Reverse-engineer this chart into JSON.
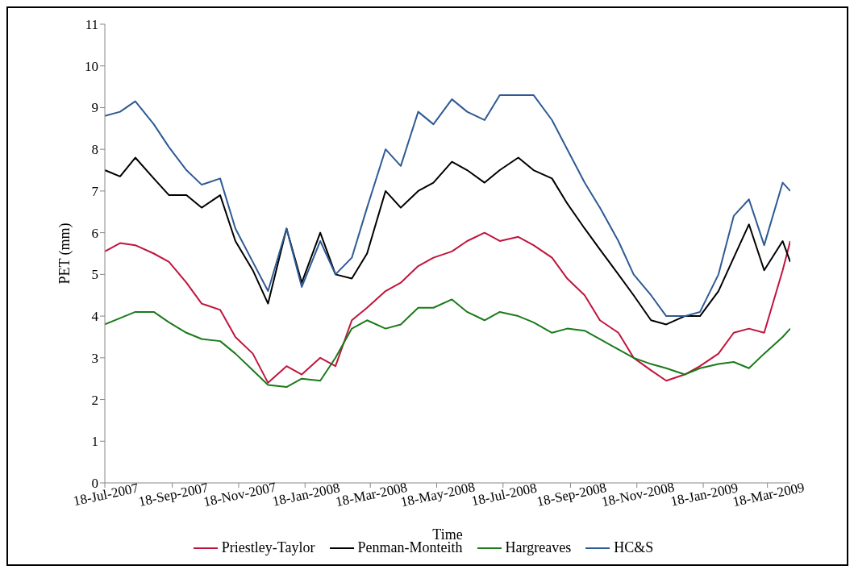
{
  "chart_data": {
    "type": "line",
    "xlabel": "Time",
    "ylabel": "PET (mm)",
    "x": [
      "2007-07-18",
      "2007-08-01",
      "2007-08-15",
      "2007-09-01",
      "2007-09-15",
      "2007-10-01",
      "2007-10-15",
      "2007-11-01",
      "2007-11-15",
      "2007-12-01",
      "2007-12-15",
      "2008-01-01",
      "2008-01-15",
      "2008-02-01",
      "2008-02-15",
      "2008-03-01",
      "2008-03-15",
      "2008-04-01",
      "2008-04-15",
      "2008-05-01",
      "2008-05-15",
      "2008-06-01",
      "2008-06-15",
      "2008-07-01",
      "2008-07-15",
      "2008-08-01",
      "2008-08-15",
      "2008-09-01",
      "2008-09-15",
      "2008-10-01",
      "2008-10-15",
      "2008-11-01",
      "2008-11-15",
      "2008-12-01",
      "2008-12-15",
      "2009-01-01",
      "2009-01-15",
      "2009-02-01",
      "2009-02-15",
      "2009-03-01",
      "2009-03-15",
      "2009-04-01",
      "2009-04-08"
    ],
    "series": [
      {
        "name": "Priestley-Taylor",
        "color": "#c0143c",
        "values": [
          5.55,
          5.75,
          5.7,
          5.5,
          5.3,
          4.8,
          4.3,
          4.15,
          3.5,
          3.1,
          2.4,
          2.8,
          2.6,
          3.0,
          2.8,
          3.9,
          4.2,
          4.6,
          4.8,
          5.2,
          5.4,
          5.55,
          5.8,
          6.0,
          5.8,
          5.9,
          5.7,
          5.4,
          4.9,
          4.5,
          3.9,
          3.6,
          3.0,
          2.7,
          2.45,
          2.6,
          2.8,
          3.1,
          3.6,
          3.7,
          3.6,
          5.1,
          5.8
        ]
      },
      {
        "name": "Penman-Monteith",
        "color": "#000000",
        "values": [
          7.5,
          7.35,
          7.8,
          7.3,
          6.9,
          6.9,
          6.6,
          6.9,
          5.8,
          5.1,
          4.3,
          6.1,
          4.8,
          6.0,
          5.0,
          4.9,
          5.5,
          7.0,
          6.6,
          7.0,
          7.2,
          7.7,
          7.5,
          7.2,
          7.5,
          7.8,
          7.5,
          7.3,
          6.7,
          6.1,
          5.6,
          5.0,
          4.5,
          3.9,
          3.8,
          4.0,
          4.0,
          4.6,
          5.4,
          6.2,
          5.1,
          5.8,
          5.3
        ]
      },
      {
        "name": "Hargreaves",
        "color": "#1a7a1a",
        "values": [
          3.8,
          3.95,
          4.1,
          4.1,
          3.85,
          3.6,
          3.45,
          3.4,
          3.1,
          2.7,
          2.35,
          2.3,
          2.5,
          2.45,
          3.0,
          3.7,
          3.9,
          3.7,
          3.8,
          4.2,
          4.2,
          4.4,
          4.1,
          3.9,
          4.1,
          4.0,
          3.85,
          3.6,
          3.7,
          3.65,
          3.45,
          3.2,
          3.0,
          2.85,
          2.75,
          2.6,
          2.75,
          2.85,
          2.9,
          2.75,
          3.1,
          3.5,
          3.7
        ]
      },
      {
        "name": "HC&S",
        "color": "#2e5a94",
        "values": [
          8.8,
          8.9,
          9.15,
          8.6,
          8.05,
          7.5,
          7.15,
          7.3,
          6.1,
          5.3,
          4.6,
          6.1,
          4.7,
          5.8,
          5.0,
          5.4,
          6.6,
          8.0,
          7.6,
          8.9,
          8.6,
          9.2,
          8.9,
          8.7,
          9.3,
          9.3,
          9.3,
          8.7,
          8.0,
          7.2,
          6.6,
          5.8,
          5.0,
          4.5,
          4.0,
          4.0,
          4.1,
          5.0,
          6.4,
          6.8,
          5.7,
          7.2,
          7.0
        ]
      }
    ],
    "xlim": [
      "2007-07-18",
      "2009-04-08"
    ],
    "xticks": [
      {
        "value": "2007-07-18",
        "label": "18-Jul-2007"
      },
      {
        "value": "2007-09-18",
        "label": "18-Sep-2007"
      },
      {
        "value": "2007-11-18",
        "label": "18-Nov-2007"
      },
      {
        "value": "2008-01-18",
        "label": "18-Jan-2008"
      },
      {
        "value": "2008-03-18",
        "label": "18-Mar-2008"
      },
      {
        "value": "2008-05-18",
        "label": "18-May-2008"
      },
      {
        "value": "2008-07-18",
        "label": "18-Jul-2008"
      },
      {
        "value": "2008-09-18",
        "label": "18-Sep-2008"
      },
      {
        "value": "2008-11-18",
        "label": "18-Nov-2008"
      },
      {
        "value": "2009-01-18",
        "label": "18-Jan-2009"
      },
      {
        "value": "2009-03-18",
        "label": "18-Mar-2009"
      }
    ],
    "ylim": [
      0,
      11
    ],
    "yticks": [
      0,
      1,
      2,
      3,
      4,
      5,
      6,
      7,
      8,
      9,
      10,
      11
    ],
    "grid": false,
    "legend": "bottom",
    "marker": "none",
    "line_style": "solid"
  }
}
